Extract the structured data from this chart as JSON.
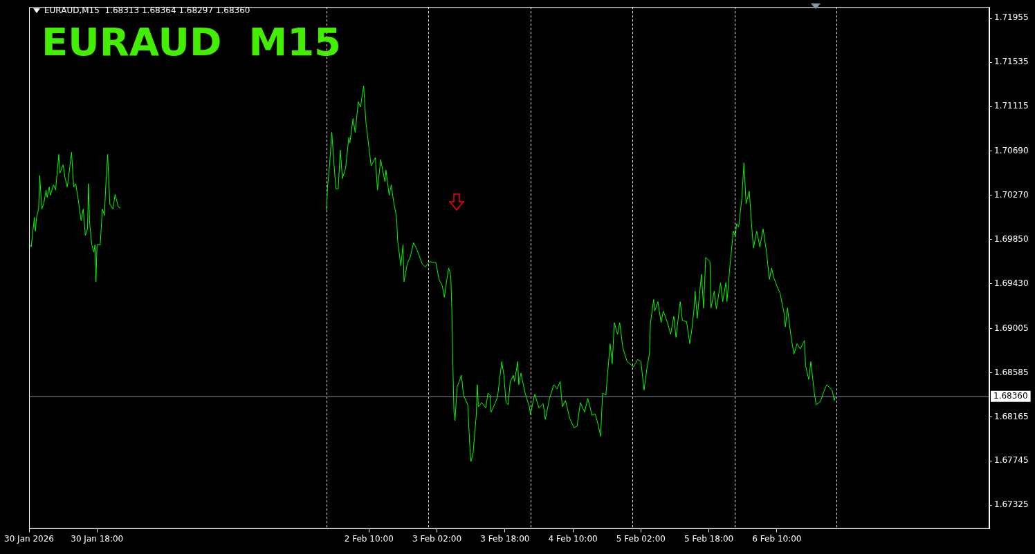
{
  "chart_data": {
    "type": "line",
    "title": "EURAUD  M15",
    "subtitle": "EURAUD,M15  1.68313 1.68364 1.68297 1.68360",
    "marker": "none",
    "line_style": "solid",
    "xlim": [
      "2026-01-30T02:00",
      "2026-02-08T12:00"
    ],
    "xticks": [
      {
        "value": "2026-01-30T02:00",
        "label": "30 Jan 2026"
      },
      {
        "value": "2026-01-30T18:00",
        "label": "30 Jan 18:00"
      },
      {
        "value": "2026-02-02T10:00",
        "label": "2 Feb 10:00"
      },
      {
        "value": "2026-02-03T02:00",
        "label": "3 Feb 02:00"
      },
      {
        "value": "2026-02-03T18:00",
        "label": "3 Feb 18:00"
      },
      {
        "value": "2026-02-04T10:00",
        "label": "4 Feb 10:00"
      },
      {
        "value": "2026-02-05T02:00",
        "label": "5 Feb 02:00"
      },
      {
        "value": "2026-02-05T18:00",
        "label": "5 Feb 18:00"
      },
      {
        "value": "2026-02-06T10:00",
        "label": "6 Feb 10:00"
      }
    ],
    "ylim": [
      1.671,
      1.7206
    ],
    "yticks": [
      1.71955,
      1.71535,
      1.71115,
      {
        "value": 1.7069,
        "label": "1.70690"
      },
      {
        "value": 1.7027,
        "label": "1.70270"
      },
      {
        "value": 1.6985,
        "label": "1.69850"
      },
      {
        "value": 1.6943,
        "label": "1.69430"
      },
      1.69005,
      1.68585,
      1.68165,
      1.67745,
      1.67325
    ],
    "x": [
      "2026-01-30T02:15",
      "2026-01-30T02:30",
      "2026-01-30T03:15",
      "2026-01-30T03:30",
      "2026-01-30T03:45",
      "2026-01-30T04:15",
      "2026-01-30T04:30",
      "2026-01-30T05:00",
      "2026-01-30T05:30",
      "2026-01-30T06:00",
      "2026-01-30T06:15",
      "2026-01-30T06:45",
      "2026-01-30T07:00",
      "2026-01-30T07:45",
      "2026-01-30T08:15",
      "2026-01-30T09:00",
      "2026-01-30T09:15",
      "2026-01-30T10:00",
      "2026-01-30T10:30",
      "2026-01-30T11:00",
      "2026-01-30T11:30",
      "2026-01-30T12:00",
      "2026-01-30T12:30",
      "2026-01-30T13:00",
      "2026-01-30T13:30",
      "2026-01-30T14:15",
      "2026-01-30T14:45",
      "2026-01-30T15:15",
      "2026-01-30T15:45",
      "2026-01-30T16:00",
      "2026-01-30T16:15",
      "2026-01-30T16:45",
      "2026-01-30T17:15",
      "2026-01-30T17:30",
      "2026-01-30T17:45",
      "2026-01-30T18:00",
      "2026-01-30T18:45",
      "2026-01-30T19:15",
      "2026-01-30T19:45",
      "2026-01-30T20:00",
      "2026-01-30T20:30",
      "2026-01-30T21:00",
      "2026-01-30T21:45",
      "2026-01-30T22:15",
      "2026-01-30T23:00",
      "2026-01-30T23:30",
      "2026-02-02T00:00",
      "2026-02-02T00:15",
      "2026-02-02T00:45",
      "2026-02-02T01:15",
      "2026-02-02T01:45",
      "2026-02-02T02:15",
      "2026-02-02T02:45",
      "2026-02-02T03:15",
      "2026-02-02T03:45",
      "2026-02-02T04:30",
      "2026-02-02T05:15",
      "2026-02-02T05:30",
      "2026-02-02T06:15",
      "2026-02-02T06:45",
      "2026-02-02T07:30",
      "2026-02-02T08:00",
      "2026-02-02T08:45",
      "2026-02-02T09:15",
      "2026-02-02T10:00",
      "2026-02-02T10:30",
      "2026-02-02T11:30",
      "2026-02-02T12:00",
      "2026-02-02T12:45",
      "2026-02-02T13:45",
      "2026-02-02T14:00",
      "2026-02-02T14:45",
      "2026-02-02T15:15",
      "2026-02-02T15:45",
      "2026-02-02T16:30",
      "2026-02-02T16:45",
      "2026-02-02T17:30",
      "2026-02-02T18:00",
      "2026-02-02T18:15",
      "2026-02-02T19:00",
      "2026-02-02T19:45",
      "2026-02-02T20:30",
      "2026-02-02T21:15",
      "2026-02-02T22:30",
      "2026-02-02T23:15",
      "2026-02-03T00:15",
      "2026-02-03T01:45",
      "2026-02-03T02:30",
      "2026-02-03T03:15",
      "2026-02-03T03:45",
      "2026-02-03T04:15",
      "2026-02-03T04:45",
      "2026-02-03T05:15",
      "2026-02-03T05:30",
      "2026-02-03T05:45",
      "2026-02-03T06:00",
      "2026-02-03T06:15",
      "2026-02-03T06:45",
      "2026-02-03T07:15",
      "2026-02-03T07:45",
      "2026-02-03T08:15",
      "2026-02-03T09:15",
      "2026-02-03T09:45",
      "2026-02-03T10:00",
      "2026-02-03T10:30",
      "2026-02-03T11:15",
      "2026-02-03T11:30",
      "2026-02-03T11:45",
      "2026-02-03T12:30",
      "2026-02-03T13:30",
      "2026-02-03T14:00",
      "2026-02-03T14:30",
      "2026-02-03T14:45",
      "2026-02-03T15:45",
      "2026-02-03T16:15",
      "2026-02-03T17:15",
      "2026-02-03T17:45",
      "2026-02-03T18:15",
      "2026-02-03T18:45",
      "2026-02-03T19:15",
      "2026-02-03T20:00",
      "2026-02-03T20:15",
      "2026-02-03T21:00",
      "2026-02-03T21:15",
      "2026-02-03T21:45",
      "2026-02-03T22:45",
      "2026-02-03T23:45",
      "2026-02-04T00:00",
      "2026-02-04T01:00",
      "2026-02-04T02:00",
      "2026-02-04T03:00",
      "2026-02-04T03:30",
      "2026-02-04T04:30",
      "2026-02-04T05:30",
      "2026-02-04T06:15",
      "2026-02-04T07:00",
      "2026-02-04T07:30",
      "2026-02-04T08:15",
      "2026-02-04T09:15",
      "2026-02-04T10:15",
      "2026-02-04T11:00",
      "2026-02-04T11:45",
      "2026-02-04T12:45",
      "2026-02-04T13:30",
      "2026-02-04T14:30",
      "2026-02-04T15:15",
      "2026-02-04T16:00",
      "2026-02-04T16:30",
      "2026-02-04T17:00",
      "2026-02-04T17:45",
      "2026-02-04T18:45",
      "2026-02-04T19:15",
      "2026-02-04T19:45",
      "2026-02-04T20:30",
      "2026-02-04T21:00",
      "2026-02-04T21:45",
      "2026-02-04T22:45",
      "2026-02-05T00:15",
      "2026-02-05T01:15",
      "2026-02-05T02:00",
      "2026-02-05T02:45",
      "2026-02-05T03:30",
      "2026-02-05T04:00",
      "2026-02-05T04:15",
      "2026-02-05T05:00",
      "2026-02-05T05:15",
      "2026-02-05T06:00",
      "2026-02-05T06:45",
      "2026-02-05T07:15",
      "2026-02-05T08:15",
      "2026-02-05T09:00",
      "2026-02-05T09:45",
      "2026-02-05T10:15",
      "2026-02-05T11:15",
      "2026-02-05T11:45",
      "2026-02-05T12:45",
      "2026-02-05T13:30",
      "2026-02-05T14:00",
      "2026-02-05T14:30",
      "2026-02-05T14:45",
      "2026-02-05T15:15",
      "2026-02-05T16:15",
      "2026-02-05T16:45",
      "2026-02-05T17:15",
      "2026-02-05T18:15",
      "2026-02-05T18:30",
      "2026-02-05T19:15",
      "2026-02-05T19:45",
      "2026-02-05T20:45",
      "2026-02-05T21:15",
      "2026-02-05T22:00",
      "2026-02-05T22:15",
      "2026-02-05T23:00",
      "2026-02-05T23:45",
      "2026-02-06T00:15",
      "2026-02-06T00:30",
      "2026-02-06T01:00",
      "2026-02-06T01:45",
      "2026-02-06T02:15",
      "2026-02-06T02:45",
      "2026-02-06T03:30",
      "2026-02-06T04:15",
      "2026-02-06T04:30",
      "2026-02-06T05:15",
      "2026-02-06T06:00",
      "2026-02-06T06:45",
      "2026-02-06T07:30",
      "2026-02-06T08:15",
      "2026-02-06T08:45",
      "2026-02-06T09:15",
      "2026-02-06T10:00",
      "2026-02-06T10:45",
      "2026-02-06T11:45",
      "2026-02-06T12:00",
      "2026-02-06T12:30",
      "2026-02-06T13:15",
      "2026-02-06T14:00",
      "2026-02-06T14:45",
      "2026-02-06T15:30",
      "2026-02-06T16:30",
      "2026-02-06T16:45",
      "2026-02-06T17:30",
      "2026-02-06T18:00",
      "2026-02-06T18:45",
      "2026-02-06T19:15",
      "2026-02-06T20:15",
      "2026-02-06T21:00",
      "2026-02-06T21:45",
      "2026-02-06T23:00",
      "2026-02-06T23:30",
      "2026-02-06T23:45"
    ],
    "series": [
      {
        "color": "#00ff00",
        "values": [
          1.698,
          1.6978,
          1.7006,
          1.6993,
          1.7006,
          1.7014,
          1.7046,
          1.7014,
          1.702,
          1.7032,
          1.7025,
          1.7035,
          1.7027,
          1.7037,
          1.7032,
          1.7066,
          1.7048,
          1.7056,
          1.7043,
          1.7035,
          1.7051,
          1.7068,
          1.7035,
          1.7038,
          1.7025,
          1.7003,
          1.7014,
          1.6989,
          1.6995,
          1.7038,
          1.7001,
          1.698,
          1.6973,
          1.698,
          1.6945,
          1.698,
          1.698,
          1.7014,
          1.7008,
          1.7032,
          1.7066,
          1.7019,
          1.7014,
          1.7028,
          1.7016,
          1.7015,
          1.7013,
          1.7035,
          1.7057,
          1.7087,
          1.7057,
          1.7033,
          1.7033,
          1.707,
          1.7043,
          1.7053,
          1.7082,
          1.7077,
          1.71,
          1.7087,
          1.7116,
          1.7111,
          1.7131,
          1.7098,
          1.7072,
          1.7055,
          1.7063,
          1.7032,
          1.7061,
          1.704,
          1.7051,
          1.7027,
          1.7037,
          1.7022,
          1.7006,
          1.6984,
          1.696,
          1.698,
          1.6945,
          1.6962,
          1.6969,
          1.6982,
          1.6976,
          1.6962,
          1.6959,
          1.6964,
          1.6963,
          1.6947,
          1.6941,
          1.693,
          1.6945,
          1.6958,
          1.6951,
          1.6918,
          1.6865,
          1.6821,
          1.6813,
          1.6845,
          1.685,
          1.6856,
          1.6837,
          1.6828,
          1.6787,
          1.6774,
          1.6782,
          1.6818,
          1.6847,
          1.6826,
          1.683,
          1.6825,
          1.6839,
          1.6837,
          1.6821,
          1.683,
          1.6835,
          1.6869,
          1.6856,
          1.683,
          1.6828,
          1.685,
          1.6856,
          1.685,
          1.6869,
          1.6847,
          1.6858,
          1.6839,
          1.6826,
          1.6819,
          1.6838,
          1.6825,
          1.6829,
          1.6814,
          1.6834,
          1.6847,
          1.6843,
          1.685,
          1.6826,
          1.6832,
          1.6815,
          1.6806,
          1.6808,
          1.683,
          1.6821,
          1.6834,
          1.6818,
          1.6819,
          1.6808,
          1.6798,
          1.6839,
          1.6837,
          1.6886,
          1.6867,
          1.6906,
          1.6895,
          1.6906,
          1.6882,
          1.6869,
          1.6864,
          1.6871,
          1.6869,
          1.6842,
          1.6865,
          1.6876,
          1.6906,
          1.6928,
          1.6917,
          1.6926,
          1.6906,
          1.6917,
          1.6906,
          1.6895,
          1.6912,
          1.6892,
          1.6926,
          1.6908,
          1.6907,
          1.6886,
          1.69,
          1.6919,
          1.6936,
          1.691,
          1.6952,
          1.692,
          1.6968,
          1.6964,
          1.692,
          1.6936,
          1.6919,
          1.6944,
          1.6926,
          1.6944,
          1.6926,
          1.6962,
          1.6993,
          1.6988,
          1.7,
          1.6997,
          1.7024,
          1.7058,
          1.7019,
          1.7031,
          1.6988,
          1.6977,
          1.6993,
          1.6978,
          1.6995,
          1.6975,
          1.6947,
          1.6958,
          1.6949,
          1.6941,
          1.6934,
          1.6914,
          1.6902,
          1.692,
          1.6895,
          1.6876,
          1.6886,
          1.6881,
          1.6889,
          1.6865,
          1.6852,
          1.6869,
          1.6841,
          1.6828,
          1.6831,
          1.684,
          1.6847,
          1.6842,
          1.6832,
          1.6836
        ]
      }
    ],
    "ref_lines": [
      {
        "axis": "x",
        "value": "2026-02-02T00:00",
        "color": "#ffffff",
        "line_style": "dashed"
      },
      {
        "axis": "x",
        "value": "2026-02-03T00:00",
        "color": "#ffffff",
        "line_style": "dashed"
      },
      {
        "axis": "x",
        "value": "2026-02-04T00:00",
        "color": "#ffffff",
        "line_style": "dashed"
      },
      {
        "axis": "x",
        "value": "2026-02-05T00:00",
        "color": "#ffffff",
        "line_style": "dashed"
      },
      {
        "axis": "x",
        "value": "2026-02-06T00:00",
        "color": "#ffffff",
        "line_style": "dashed"
      },
      {
        "axis": "x",
        "value": "2026-02-07T00:00",
        "color": "#ffffff",
        "line_style": "dashed"
      },
      {
        "axis": "y",
        "value": 1.6836,
        "label": "1.68360",
        "color": "#778899",
        "line_style": "solid"
      }
    ]
  }
}
